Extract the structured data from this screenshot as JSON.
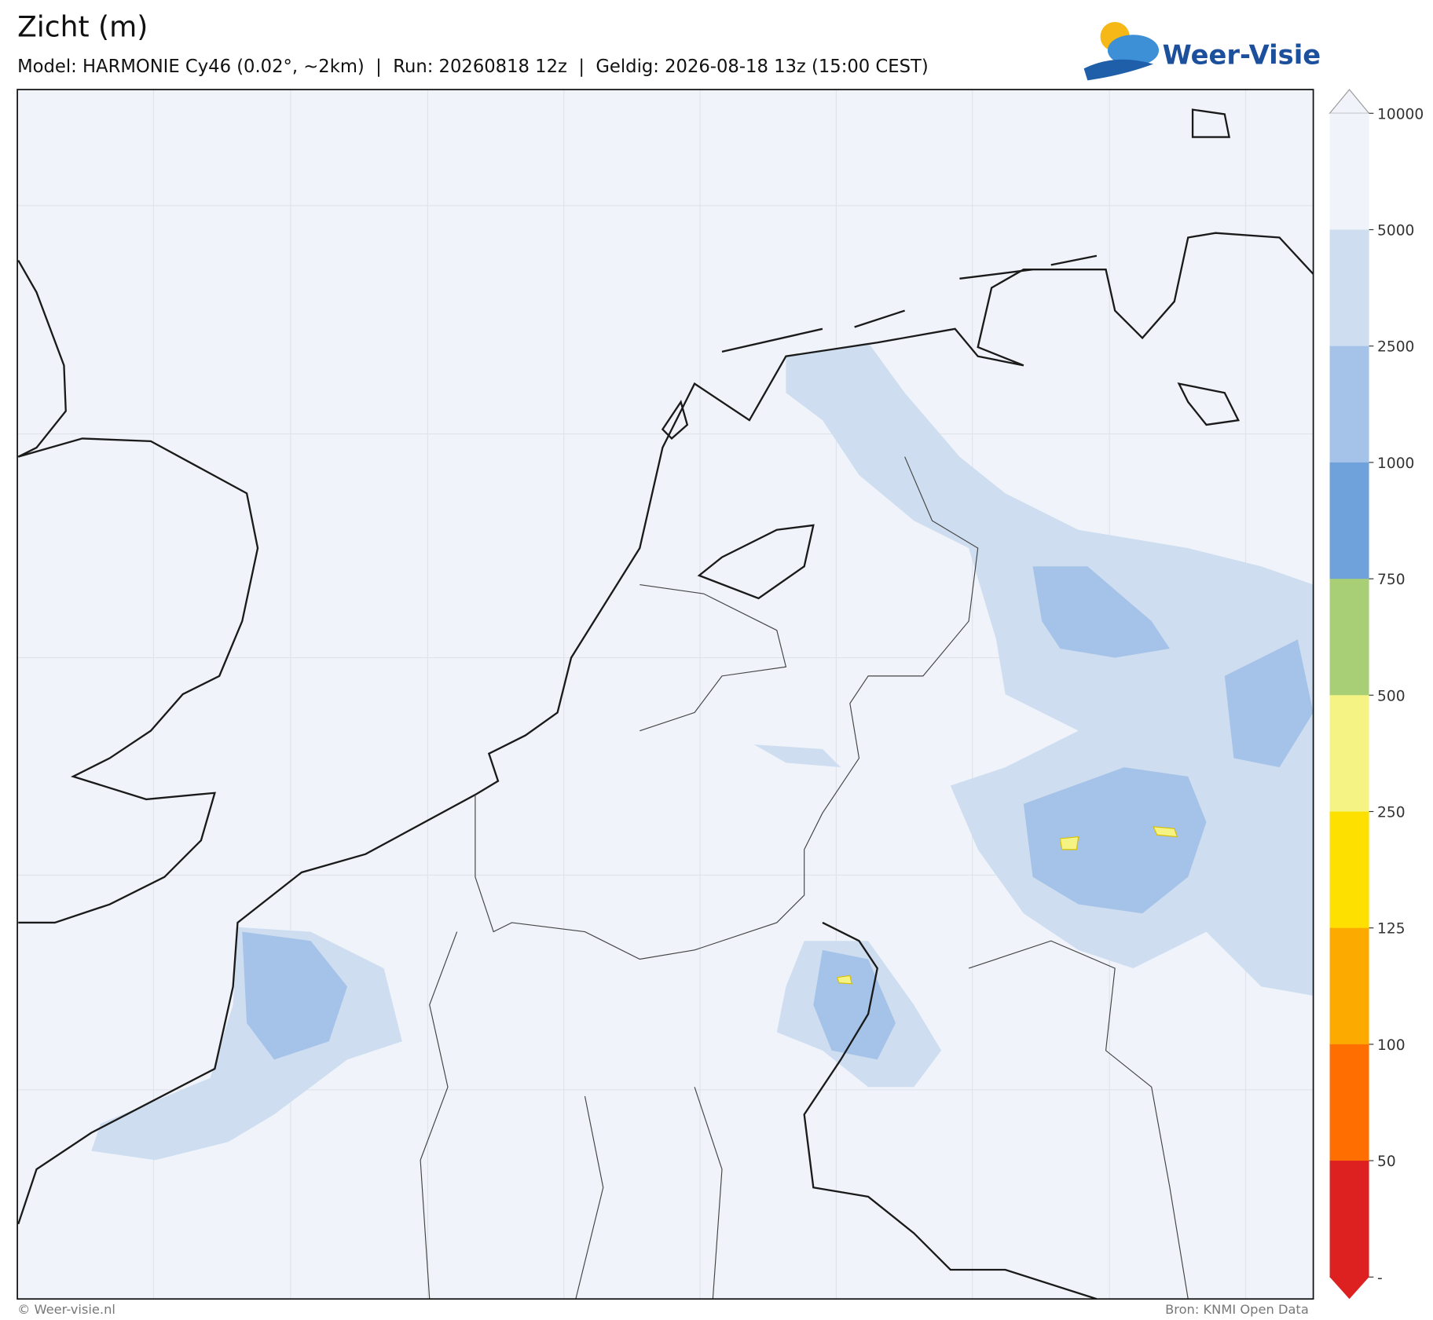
{
  "header": {
    "title": "Zicht (m)",
    "subtitle": "Model: HARMONIE Cy46 (0.02°, ~2km)  |  Run: 20260818 12z  |  Geldig: 2026-08-18 13z (15:00 CEST)"
  },
  "logo": {
    "text": "Weer-Visie"
  },
  "colorbar": {
    "levels": [
      10000,
      5000,
      2500,
      1000,
      750,
      500,
      250,
      125,
      100,
      50
    ],
    "colors": [
      "#f0f4fa",
      "#cedef0",
      "#a5c3e8",
      "#6fa2da",
      "#a8cf76",
      "#f5f384",
      "#fde000",
      "#fdaa00",
      "#ff6e00",
      "#dd2020"
    ],
    "bottom_label": "-"
  },
  "footer": {
    "left": "© Weer-visie.nl",
    "right": "Bron: KNMI Open Data"
  }
}
